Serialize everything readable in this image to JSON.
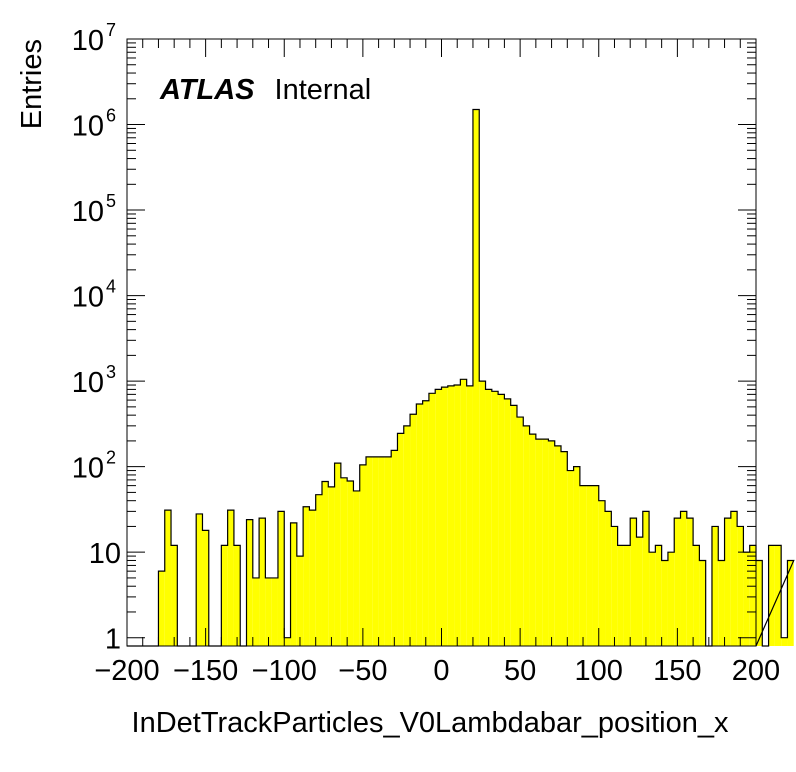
{
  "chart_data": {
    "type": "bar",
    "title": "",
    "xlabel": "InDetTrackParticles_V0Lambdabar_position_x",
    "ylabel": "Entries",
    "xlim": [
      -200,
      200
    ],
    "ylim": [
      0.8,
      10000000
    ],
    "y_scale": "log",
    "bin_width": 4,
    "x_ticks": [
      -200,
      -150,
      -100,
      -50,
      0,
      50,
      100,
      150,
      200
    ],
    "x_tick_labels": [
      "−200",
      "−150",
      "−100",
      "−50",
      "0",
      "50",
      "100",
      "150",
      "200"
    ],
    "y_tick_labels": [
      {
        "value": 1,
        "base": "1",
        "exp": ""
      },
      {
        "value": 10,
        "base": "10",
        "exp": ""
      },
      {
        "value": 100,
        "base": "10",
        "exp": "2"
      },
      {
        "value": 1000,
        "base": "10",
        "exp": "3"
      },
      {
        "value": 10000,
        "base": "10",
        "exp": "4"
      },
      {
        "value": 100000,
        "base": "10",
        "exp": "5"
      },
      {
        "value": 1000000,
        "base": "10",
        "exp": "6"
      },
      {
        "value": 10000000,
        "base": "10",
        "exp": "7"
      }
    ],
    "series": [
      {
        "color": "#ffff00",
        "values": [
          0,
          0,
          0,
          0,
          0,
          6,
          31,
          12,
          0,
          0,
          0,
          28,
          18,
          0,
          0,
          12,
          31,
          12,
          0,
          24,
          5,
          25,
          5,
          5,
          30,
          1,
          22,
          9,
          34,
          31,
          47,
          67,
          58,
          110,
          74,
          68,
          52,
          105,
          130,
          130,
          130,
          130,
          155,
          245,
          300,
          410,
          540,
          590,
          720,
          800,
          850,
          880,
          900,
          1050,
          880,
          1500000,
          1000,
          800,
          760,
          700,
          620,
          520,
          380,
          300,
          240,
          210,
          210,
          200,
          175,
          150,
          90,
          100,
          60,
          60,
          60,
          40,
          30,
          20,
          12,
          12,
          25,
          15,
          30,
          10,
          12,
          8,
          10,
          25,
          30,
          25,
          12,
          8,
          0,
          20,
          8,
          25,
          30,
          20,
          10,
          12,
          8,
          0,
          12,
          12,
          1,
          8
        ]
      }
    ],
    "annotation": {
      "bold": "ATLAS",
      "normal": "Internal"
    },
    "grid": false,
    "legend": "none"
  }
}
